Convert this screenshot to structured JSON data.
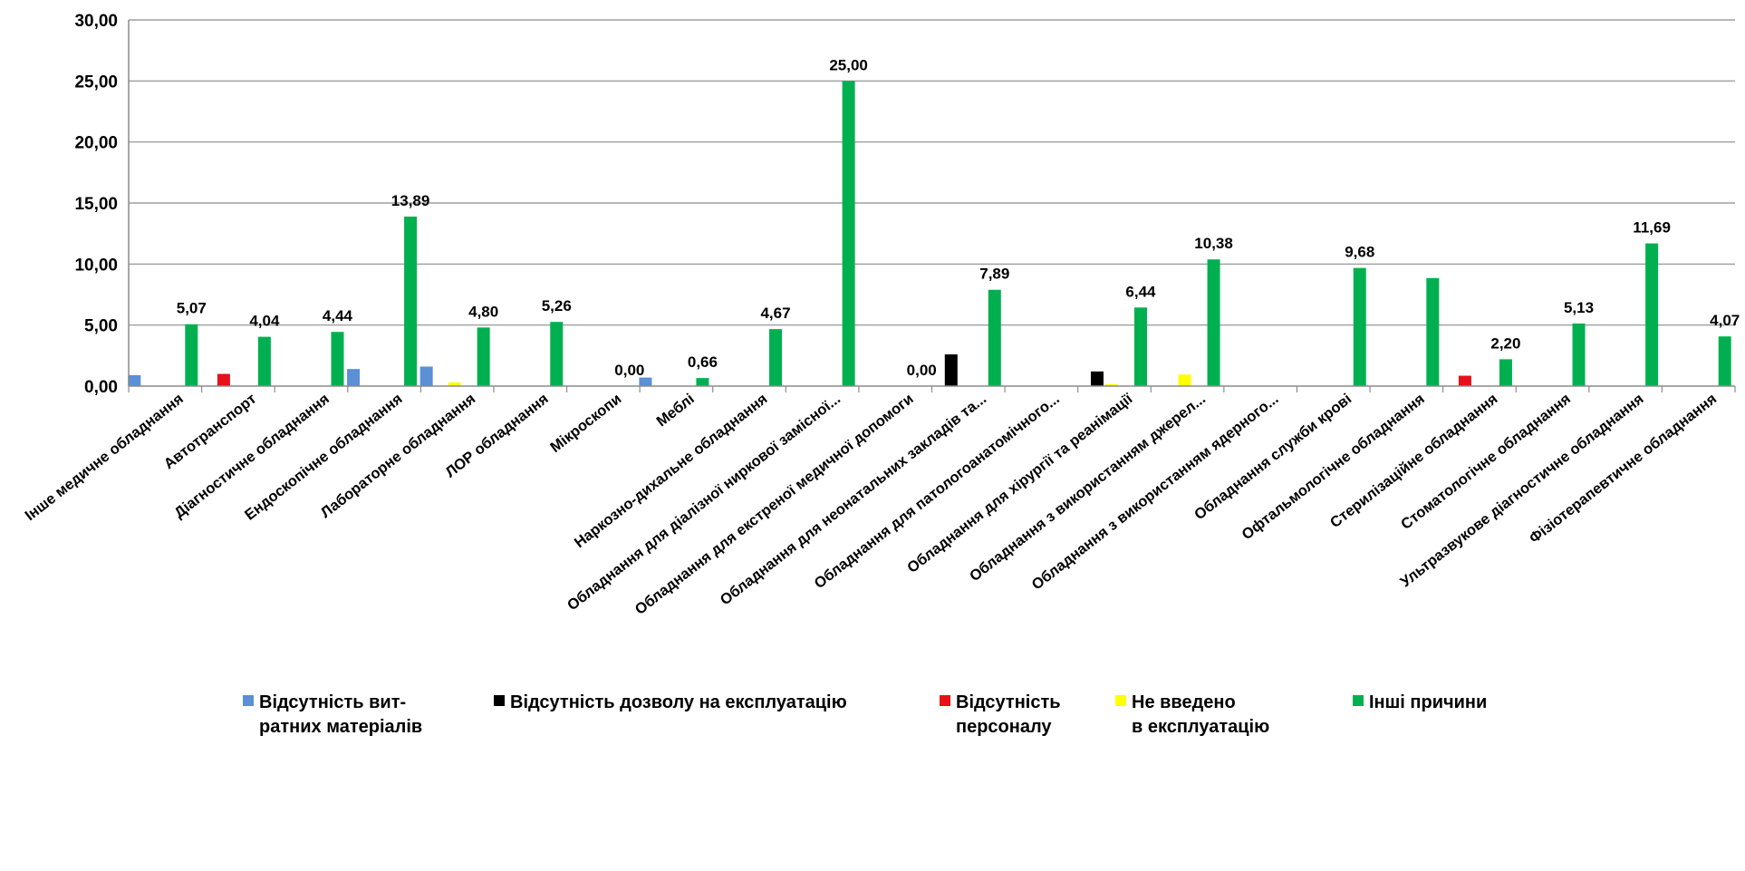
{
  "chart_data": {
    "type": "bar",
    "title": "",
    "xlabel": "",
    "ylabel": "",
    "ylim": [
      0,
      30
    ],
    "y_ticks": [
      "0,00",
      "5,00",
      "10,00",
      "15,00",
      "20,00",
      "25,00",
      "30,00"
    ],
    "grid": "horizontal",
    "legend_position": "bottom",
    "categories": [
      "Інше медичне обладнання",
      "Автотранспорт",
      "Діагностичне обладнання",
      "Ендоскопічне обладнання",
      "Лабораторне обладнання",
      "ЛОР обладнання",
      "Мікроскопи",
      "Меблі",
      "Наркозно-дихальне обладнання",
      "Обладнання для діалізної ниркової замісної...",
      "Обладнання для екстреної медичної допомоги",
      "Обладнання для неонатальних закладів та...",
      "Обладнання для патологоанатомічного...",
      "Обладнання для хірургії та реанімації",
      "Обладнання з використанням джерел...",
      "Обладнання з використанням ядерного...",
      "Обладнання служби крові",
      "Офтальмологічне обладнання",
      "Стерилізаційне обладнання",
      "Стоматологічне обладнання",
      "Ультразвукове діагностичне обладнання",
      "Фізіотерапевтичне обладнання"
    ],
    "series": [
      {
        "name": "Відсутність вит-\nратних матеріалів",
        "color": "#5b8fd6",
        "values": [
          0.9,
          0,
          0,
          1.4,
          1.6,
          0,
          0,
          0.7,
          0,
          0,
          0,
          0,
          0,
          0,
          0,
          0,
          0,
          0,
          0,
          0,
          0,
          0
        ]
      },
      {
        "name": "Відсутність дозволу на експлуатацію",
        "color": "#000000",
        "values": [
          0,
          0,
          0,
          0,
          0,
          0,
          0,
          0,
          0,
          0,
          0,
          2.6,
          0,
          1.2,
          0,
          0,
          0,
          0,
          0,
          0,
          0,
          0
        ]
      },
      {
        "name": "Відсутність\nперсоналу",
        "color": "#e8101a",
        "values": [
          0,
          1.0,
          0,
          0,
          0,
          0,
          0,
          0,
          0,
          0,
          0,
          0,
          0,
          0,
          0,
          0,
          0,
          0,
          0.85,
          0,
          0,
          0
        ]
      },
      {
        "name": "Не введено\nв експлуатацію",
        "color": "#ffff00",
        "values": [
          0,
          0,
          0,
          0,
          0.3,
          0,
          0,
          0,
          0,
          0,
          0,
          0,
          0,
          0.15,
          0.95,
          0,
          0,
          0,
          0,
          0,
          0,
          0
        ]
      },
      {
        "name": "Інші причини",
        "color": "#00b050",
        "values": [
          5.07,
          4.04,
          4.44,
          13.89,
          4.8,
          5.26,
          0,
          0.66,
          4.67,
          25.0,
          0,
          7.89,
          0,
          6.44,
          10.38,
          0,
          9.68,
          8.85,
          2.2,
          5.13,
          11.69,
          4.07
        ]
      }
    ],
    "data_labels": [
      "5,07",
      "4,04",
      "4,44",
      "13,89",
      "4,80",
      "5,26",
      "0,00",
      "0,66",
      "4,67",
      "25,00",
      "0,00",
      "7,89",
      "",
      "6,44",
      "10,38",
      "",
      "9,68",
      "",
      "2,20",
      "5,13",
      "11,69",
      "4,07"
    ]
  }
}
